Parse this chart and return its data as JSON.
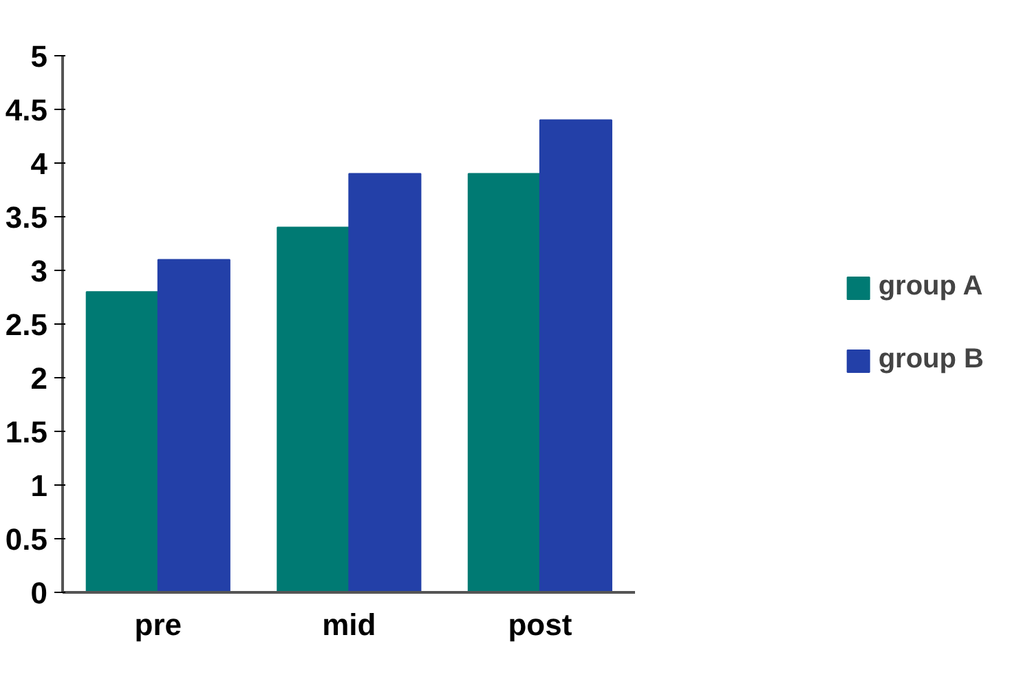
{
  "chart_data": {
    "type": "bar",
    "categories": [
      "pre",
      "mid",
      "post"
    ],
    "series": [
      {
        "name": "group A",
        "color": "#007a73",
        "values": [
          2.8,
          3.4,
          3.9
        ]
      },
      {
        "name": "group B",
        "color": "#2340a8",
        "values": [
          3.1,
          3.9,
          4.4
        ]
      }
    ],
    "ylim": [
      0,
      5
    ],
    "yticks": [
      0,
      0.5,
      1,
      1.5,
      2,
      2.5,
      3,
      3.5,
      4,
      4.5,
      5
    ],
    "grid": false,
    "legend": "right"
  }
}
